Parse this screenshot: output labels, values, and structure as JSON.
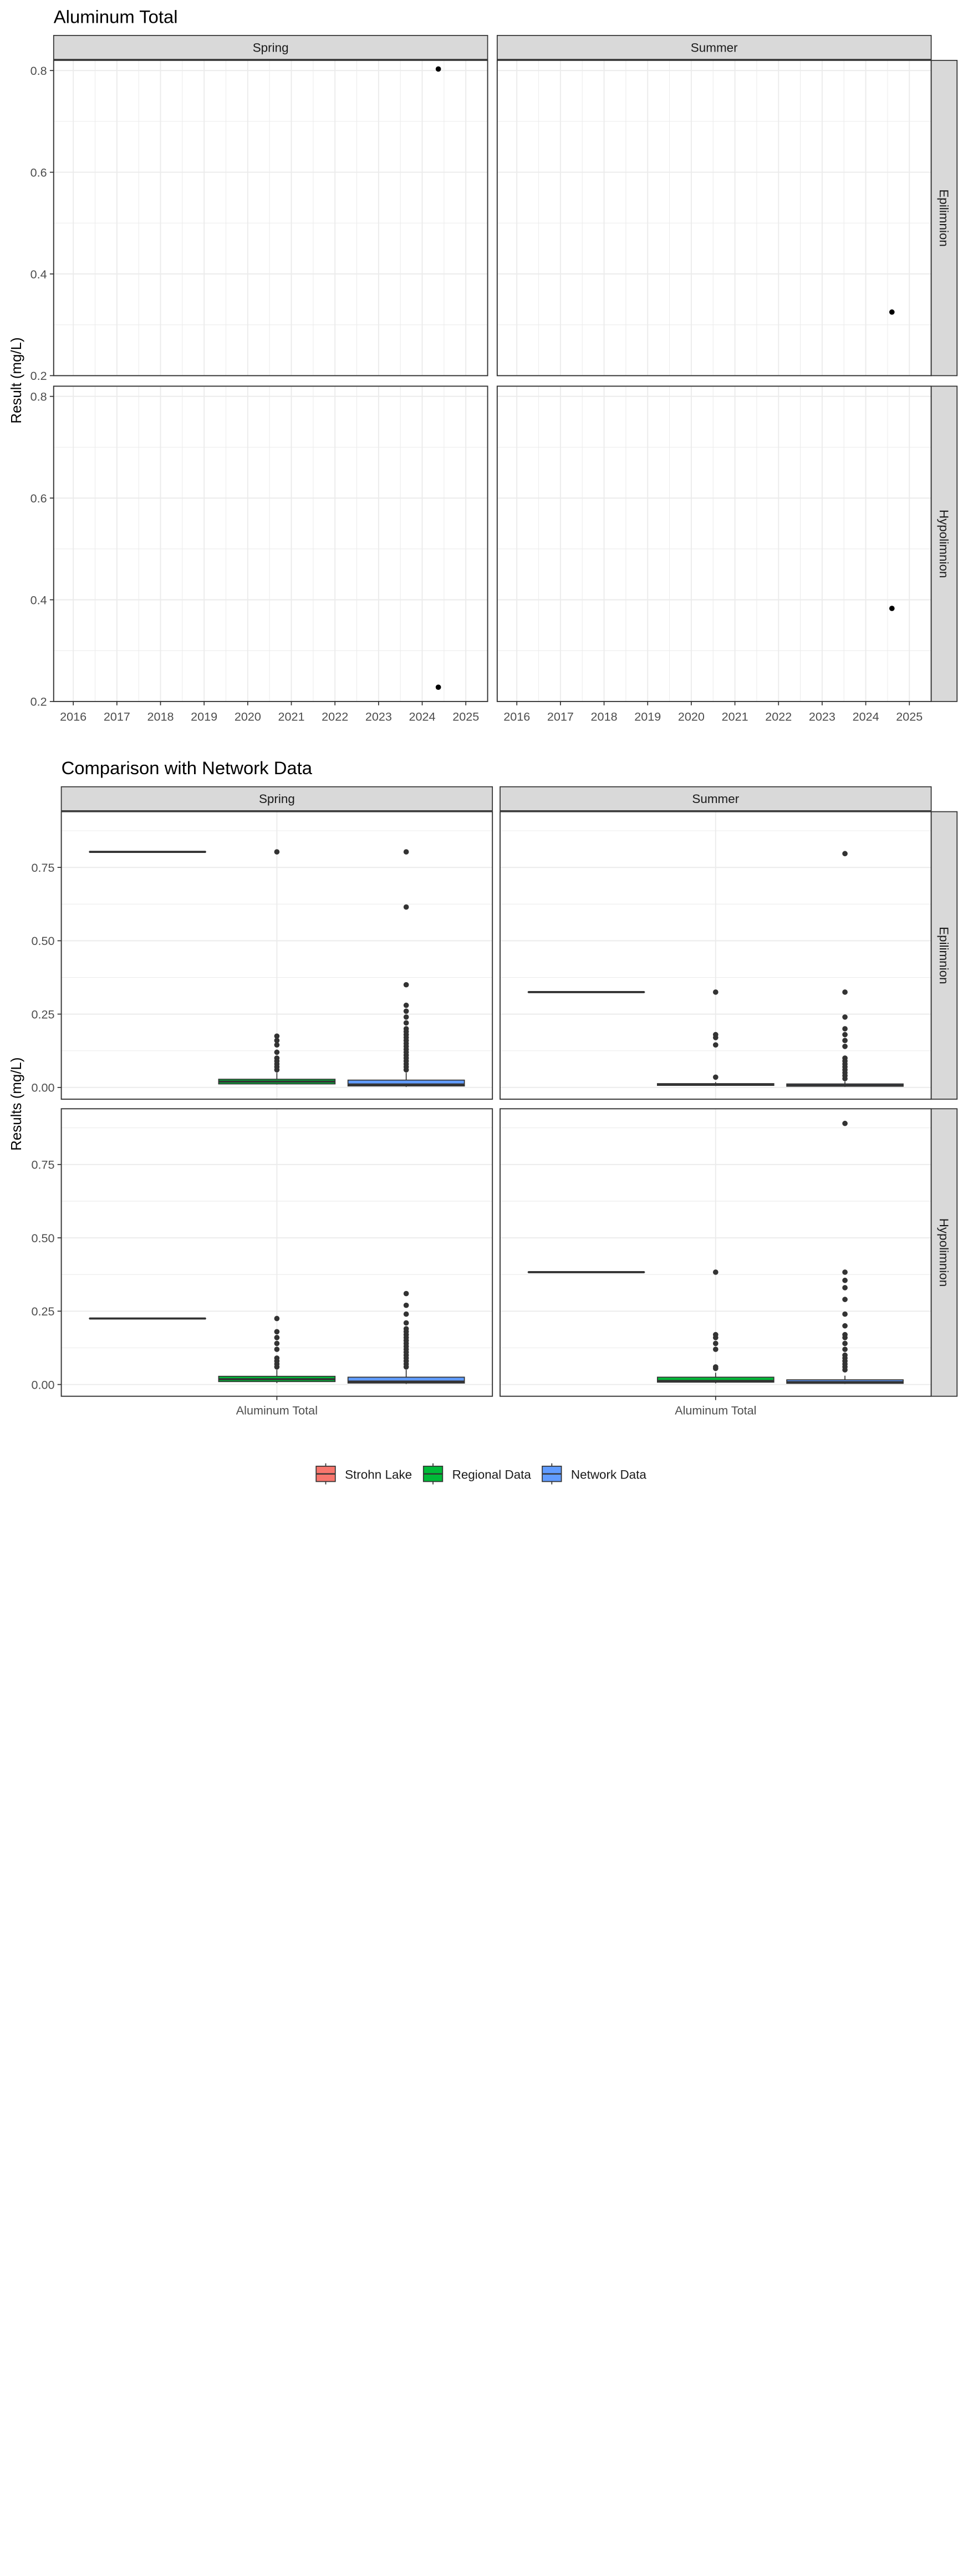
{
  "chart_data": [
    {
      "type": "scatter",
      "title": "Aluminum Total",
      "ylabel": "Result (mg/L)",
      "xlabel": "",
      "x_ticks": [
        "2016",
        "2017",
        "2018",
        "2019",
        "2020",
        "2021",
        "2022",
        "2023",
        "2024",
        "2025"
      ],
      "ylim": [
        0.2,
        0.82
      ],
      "y_ticks": [
        "0.2",
        "0.4",
        "0.6",
        "0.8"
      ],
      "grid": true,
      "column_facets": [
        "Spring",
        "Summer"
      ],
      "row_facets": [
        "Epilimnion",
        "Hypolimnion"
      ],
      "panels": [
        {
          "column": "Spring",
          "row": "Epilimnion",
          "points": [
            {
              "x": 2024.37,
              "y": 0.803
            }
          ]
        },
        {
          "column": "Summer",
          "row": "Epilimnion",
          "points": [
            {
              "x": 2024.6,
              "y": 0.325
            }
          ]
        },
        {
          "column": "Spring",
          "row": "Hypolimnion",
          "points": [
            {
              "x": 2024.37,
              "y": 0.228
            }
          ]
        },
        {
          "column": "Summer",
          "row": "Hypolimnion",
          "points": [
            {
              "x": 2024.6,
              "y": 0.383
            }
          ]
        }
      ]
    },
    {
      "type": "box",
      "title": "Comparison with Network Data",
      "ylabel": "Results (mg/L)",
      "xlabel": "",
      "categories": [
        "Aluminum Total"
      ],
      "ylim": [
        -0.04,
        0.94
      ],
      "y_ticks": [
        "0.00",
        "0.25",
        "0.50",
        "0.75"
      ],
      "grid": true,
      "legend_position": "bottom",
      "series": [
        {
          "name": "Strohn Lake",
          "color": "#F8766D"
        },
        {
          "name": "Regional Data",
          "color": "#00BA38"
        },
        {
          "name": "Network Data",
          "color": "#619CFF"
        }
      ],
      "column_facets": [
        "Spring",
        "Summer"
      ],
      "row_facets": [
        "Epilimnion",
        "Hypolimnion"
      ],
      "panels": [
        {
          "column": "Spring",
          "row": "Epilimnion",
          "boxes": [
            {
              "series": "Strohn Lake",
              "q1": 0.803,
              "median": 0.803,
              "q3": 0.803,
              "whisker_low": 0.803,
              "whisker_high": 0.803,
              "outliers": []
            },
            {
              "series": "Regional Data",
              "q1": 0.012,
              "median": 0.02,
              "q3": 0.028,
              "whisker_low": 0.01,
              "whisker_high": 0.05,
              "outliers": [
                0.803,
                0.175,
                0.16,
                0.145,
                0.12,
                0.1,
                0.09,
                0.08,
                0.07,
                0.06
              ]
            },
            {
              "series": "Network Data",
              "q1": 0.005,
              "median": 0.01,
              "q3": 0.025,
              "whisker_low": 0.002,
              "whisker_high": 0.05,
              "outliers": [
                0.803,
                0.615,
                0.35,
                0.28,
                0.26,
                0.24,
                0.22,
                0.2,
                0.19,
                0.18,
                0.17,
                0.16,
                0.15,
                0.14,
                0.13,
                0.12,
                0.11,
                0.1,
                0.09,
                0.08,
                0.07,
                0.06
              ]
            }
          ]
        },
        {
          "column": "Summer",
          "row": "Epilimnion",
          "boxes": [
            {
              "series": "Strohn Lake",
              "q1": 0.325,
              "median": 0.325,
              "q3": 0.325,
              "whisker_low": 0.325,
              "whisker_high": 0.325,
              "outliers": []
            },
            {
              "series": "Regional Data",
              "q1": 0.007,
              "median": 0.01,
              "q3": 0.013,
              "whisker_low": 0.005,
              "whisker_high": 0.018,
              "outliers": [
                0.325,
                0.18,
                0.17,
                0.145,
                0.035
              ]
            },
            {
              "series": "Network Data",
              "q1": 0.004,
              "median": 0.007,
              "q3": 0.012,
              "whisker_low": 0.002,
              "whisker_high": 0.02,
              "outliers": [
                0.797,
                0.325,
                0.24,
                0.2,
                0.18,
                0.16,
                0.14,
                0.1,
                0.09,
                0.08,
                0.07,
                0.06,
                0.05,
                0.04,
                0.03
              ]
            }
          ]
        },
        {
          "column": "Spring",
          "row": "Hypolimnion",
          "boxes": [
            {
              "series": "Strohn Lake",
              "q1": 0.225,
              "median": 0.225,
              "q3": 0.225,
              "whisker_low": 0.225,
              "whisker_high": 0.225,
              "outliers": []
            },
            {
              "series": "Regional Data",
              "q1": 0.01,
              "median": 0.018,
              "q3": 0.028,
              "whisker_low": 0.005,
              "whisker_high": 0.05,
              "outliers": [
                0.225,
                0.18,
                0.16,
                0.14,
                0.12,
                0.09,
                0.08,
                0.07,
                0.06
              ]
            },
            {
              "series": "Network Data",
              "q1": 0.005,
              "median": 0.01,
              "q3": 0.025,
              "whisker_low": 0.002,
              "whisker_high": 0.05,
              "outliers": [
                0.31,
                0.27,
                0.24,
                0.21,
                0.19,
                0.18,
                0.17,
                0.16,
                0.15,
                0.14,
                0.13,
                0.12,
                0.11,
                0.1,
                0.09,
                0.08,
                0.07,
                0.06
              ]
            }
          ]
        },
        {
          "column": "Summer",
          "row": "Hypolimnion",
          "boxes": [
            {
              "series": "Strohn Lake",
              "q1": 0.383,
              "median": 0.383,
              "q3": 0.383,
              "whisker_low": 0.383,
              "whisker_high": 0.383,
              "outliers": []
            },
            {
              "series": "Regional Data",
              "q1": 0.008,
              "median": 0.012,
              "q3": 0.025,
              "whisker_low": 0.004,
              "whisker_high": 0.04,
              "outliers": [
                0.383,
                0.17,
                0.16,
                0.14,
                0.12,
                0.06,
                0.055
              ]
            },
            {
              "series": "Network Data",
              "q1": 0.004,
              "median": 0.008,
              "q3": 0.016,
              "whisker_low": 0.002,
              "whisker_high": 0.03,
              "outliers": [
                0.89,
                0.383,
                0.355,
                0.33,
                0.29,
                0.24,
                0.2,
                0.17,
                0.16,
                0.14,
                0.12,
                0.1,
                0.09,
                0.08,
                0.07,
                0.06,
                0.05
              ]
            }
          ]
        }
      ]
    }
  ]
}
